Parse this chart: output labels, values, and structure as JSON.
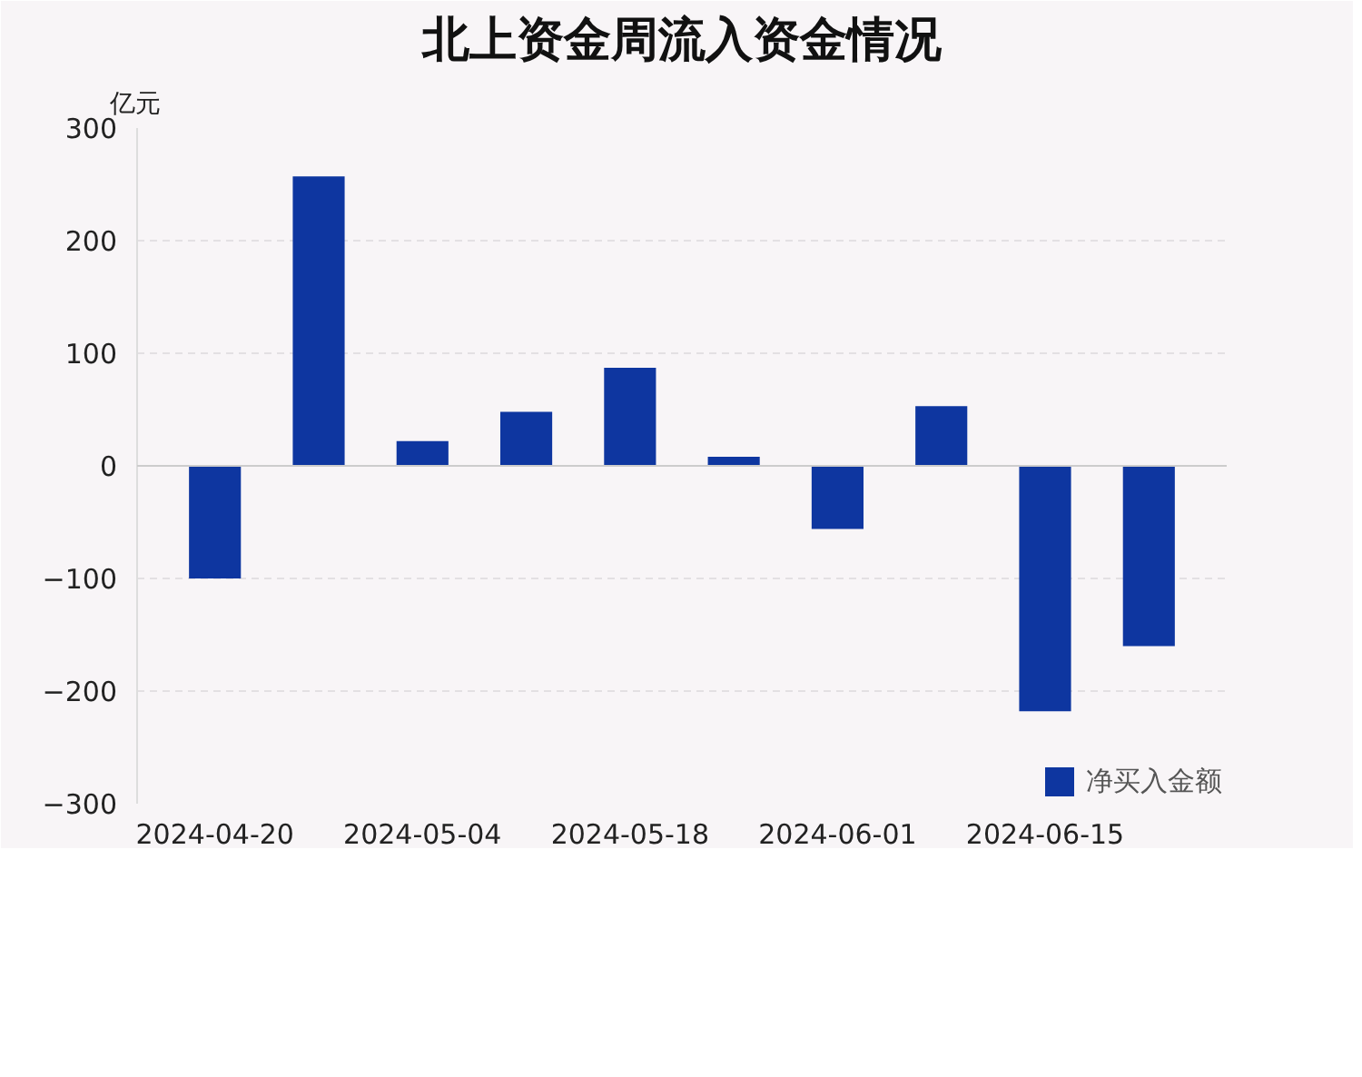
{
  "chart_data": {
    "type": "bar",
    "title": "北上资金周流入资金情况",
    "ylabel": "亿元",
    "categories": [
      "2024-04-20",
      null,
      "2024-05-04",
      null,
      "2024-05-18",
      null,
      "2024-06-01",
      null,
      "2024-06-15",
      null
    ],
    "series": [
      {
        "name": "净买入金额",
        "color": "#0e36a0",
        "values": [
          -100,
          257,
          22,
          48,
          87,
          8,
          -56,
          53,
          -218,
          -160
        ]
      }
    ],
    "ylim": [
      -300,
      300
    ],
    "yticks": [
      -300,
      -200,
      -100,
      0,
      100,
      200,
      300
    ],
    "grid": "y",
    "legend": "bottom right"
  }
}
